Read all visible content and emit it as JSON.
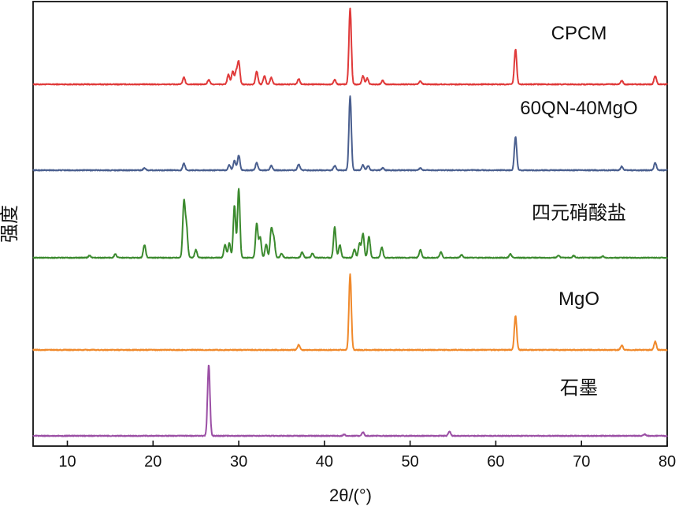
{
  "chart_data": {
    "type": "line",
    "xlabel": "2θ/(°)",
    "ylabel": "强度",
    "xlim": [
      6,
      80
    ],
    "xticks": [
      10,
      20,
      30,
      40,
      50,
      60,
      70,
      80
    ],
    "y_ticks_shown": false,
    "grid": false,
    "legend": "inline labels at right of each trace",
    "series": [
      {
        "name": "CPCM",
        "color": "#e03a3a",
        "peaks": [
          [
            23.6,
            0.09
          ],
          [
            26.5,
            0.06
          ],
          [
            28.8,
            0.13
          ],
          [
            29.3,
            0.17
          ],
          [
            29.7,
            0.16
          ],
          [
            30.0,
            0.29
          ],
          [
            32.1,
            0.17
          ],
          [
            33.0,
            0.11
          ],
          [
            33.8,
            0.09
          ],
          [
            37.0,
            0.07
          ],
          [
            41.2,
            0.06
          ],
          [
            43.0,
            1.0
          ],
          [
            44.5,
            0.11
          ],
          [
            45.0,
            0.08
          ],
          [
            46.8,
            0.05
          ],
          [
            51.2,
            0.04
          ],
          [
            62.3,
            0.46
          ],
          [
            74.7,
            0.05
          ],
          [
            78.6,
            0.11
          ]
        ]
      },
      {
        "name": "60QN-40MgO",
        "color": "#4a5f8f",
        "peaks": [
          [
            19.0,
            0.03
          ],
          [
            23.6,
            0.09
          ],
          [
            28.9,
            0.07
          ],
          [
            29.5,
            0.13
          ],
          [
            30.0,
            0.2
          ],
          [
            32.1,
            0.1
          ],
          [
            33.8,
            0.06
          ],
          [
            37.0,
            0.08
          ],
          [
            41.2,
            0.06
          ],
          [
            43.0,
            1.0
          ],
          [
            44.5,
            0.07
          ],
          [
            45.1,
            0.06
          ],
          [
            46.8,
            0.03
          ],
          [
            51.2,
            0.03
          ],
          [
            62.3,
            0.45
          ],
          [
            74.7,
            0.05
          ],
          [
            78.6,
            0.1
          ]
        ]
      },
      {
        "name": "四元硝酸盐",
        "color": "#3b8a2e",
        "peaks": [
          [
            12.6,
            0.03
          ],
          [
            15.6,
            0.05
          ],
          [
            19.0,
            0.18
          ],
          [
            23.6,
            0.77
          ],
          [
            23.9,
            0.43
          ],
          [
            25.0,
            0.11
          ],
          [
            28.4,
            0.18
          ],
          [
            28.9,
            0.21
          ],
          [
            29.5,
            0.73
          ],
          [
            30.0,
            0.97
          ],
          [
            32.1,
            0.48
          ],
          [
            32.5,
            0.29
          ],
          [
            33.2,
            0.19
          ],
          [
            33.8,
            0.4
          ],
          [
            34.1,
            0.26
          ],
          [
            35.0,
            0.06
          ],
          [
            37.4,
            0.08
          ],
          [
            38.6,
            0.06
          ],
          [
            41.2,
            0.43
          ],
          [
            41.8,
            0.18
          ],
          [
            43.5,
            0.12
          ],
          [
            44.1,
            0.2
          ],
          [
            44.5,
            0.34
          ],
          [
            45.2,
            0.3
          ],
          [
            46.7,
            0.15
          ],
          [
            51.2,
            0.11
          ],
          [
            53.6,
            0.08
          ],
          [
            56.0,
            0.04
          ],
          [
            61.7,
            0.05
          ],
          [
            67.3,
            0.03
          ],
          [
            69.1,
            0.03
          ],
          [
            72.5,
            0.02
          ]
        ]
      },
      {
        "name": "MgO",
        "color": "#f0892b",
        "peaks": [
          [
            37.0,
            0.07
          ],
          [
            43.0,
            1.0
          ],
          [
            62.3,
            0.45
          ],
          [
            74.7,
            0.06
          ],
          [
            78.6,
            0.11
          ]
        ]
      },
      {
        "name": "石墨",
        "color": "#9b4fa5",
        "peaks": [
          [
            26.5,
            1.0
          ],
          [
            42.3,
            0.02
          ],
          [
            44.5,
            0.05
          ],
          [
            54.6,
            0.06
          ],
          [
            77.4,
            0.02
          ]
        ]
      }
    ]
  }
}
